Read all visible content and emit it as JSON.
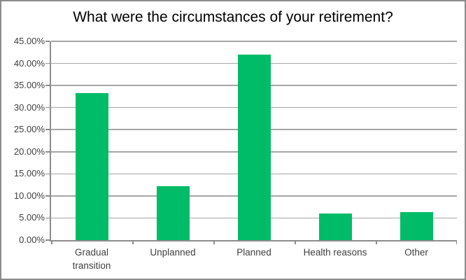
{
  "chart_data": {
    "type": "bar",
    "title": "What were the circumstances of your retirement?",
    "categories": [
      "Gradual transition",
      "Unplanned",
      "Planned",
      "Health reasons",
      "Other"
    ],
    "values": [
      33.3,
      12.2,
      42.0,
      6.1,
      6.4
    ],
    "xlabel": "",
    "ylabel": "",
    "ylim": [
      0,
      45
    ],
    "ytick_step": 5,
    "ytick_labels": [
      "0.00%",
      "5.00%",
      "10.00%",
      "15.00%",
      "20.00%",
      "25.00%",
      "30.00%",
      "35.00%",
      "40.00%",
      "45.00%"
    ],
    "grid": true,
    "legend": false,
    "colors": {
      "bar": "#00bc68",
      "gridline": "#a6a6a6",
      "axis": "#8c8c8c",
      "tick_label": "#3f3f3f",
      "title": "#000000",
      "frame_border": "#8c8c8c",
      "background": "#ffffff"
    }
  }
}
